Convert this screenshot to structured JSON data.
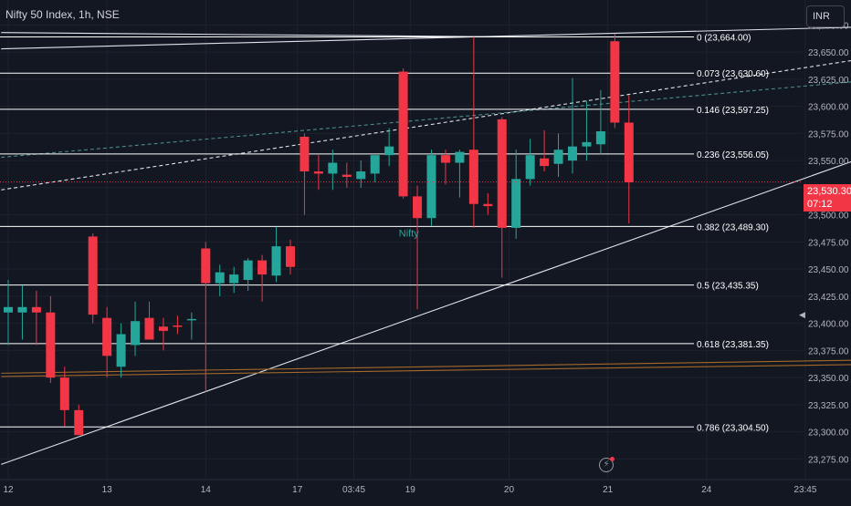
{
  "header": {
    "title": "Nifty 50 Index, 1h, NSE",
    "currency_button": "INR"
  },
  "price_tag": {
    "price": "23,530.30",
    "countdown": "07:12",
    "value": 23530.3
  },
  "colors": {
    "background": "#131722",
    "up": "#26a69a",
    "down": "#f23645",
    "grid": "#1e222d",
    "axis_text": "#b2b5be",
    "fib_line": "#ffffff",
    "trend_white": "#e0e3eb",
    "trend_teal": "#4a8c89",
    "trend_orange": "#a4682a"
  },
  "icons": {
    "flash": "lightning-icon",
    "nav": "chevron-left-icon"
  },
  "chart_data": {
    "type": "candlestick",
    "ylim": [
      23256,
      23698
    ],
    "y_ticks": [
      "23,675.00",
      "23,650.00",
      "23,625.00",
      "23,600.00",
      "23,575.00",
      "23,550.00",
      "23,525.00",
      "23,500.00",
      "23,475.00",
      "23,450.00",
      "23,425.00",
      "23,400.00",
      "23,375.00",
      "23,350.00",
      "23,325.00",
      "23,300.00",
      "23,275.00"
    ],
    "y_tick_values": [
      23675,
      23650,
      23625,
      23600,
      23575,
      23550,
      23525,
      23500,
      23475,
      23450,
      23425,
      23400,
      23375,
      23350,
      23325,
      23300,
      23275
    ],
    "x_ticks": [
      {
        "label": "12",
        "bar": 0
      },
      {
        "label": "13",
        "bar": 7
      },
      {
        "label": "14",
        "bar": 14
      },
      {
        "label": "17",
        "bar": 20.5
      },
      {
        "label": "03:45",
        "bar": 24.5
      },
      {
        "label": "19",
        "bar": 28.5
      },
      {
        "label": "20",
        "bar": 35.5
      },
      {
        "label": "21",
        "bar": 42.5
      },
      {
        "label": "24",
        "bar": 49.5
      },
      {
        "label": "23:45",
        "bar": 56.5
      }
    ],
    "series_label": "Nifty",
    "candles": [
      {
        "o": 23410,
        "h": 23440,
        "l": 23380,
        "c": 23415
      },
      {
        "o": 23410,
        "h": 23435,
        "l": 23385,
        "c": 23415
      },
      {
        "o": 23415,
        "h": 23430,
        "l": 23380,
        "c": 23410
      },
      {
        "o": 23410,
        "h": 23425,
        "l": 23345,
        "c": 23350
      },
      {
        "o": 23350,
        "h": 23360,
        "l": 23305,
        "c": 23320
      },
      {
        "o": 23320,
        "h": 23325,
        "l": 23298,
        "c": 23297
      },
      {
        "o": 23480,
        "h": 23483,
        "l": 23400,
        "c": 23408
      },
      {
        "o": 23405,
        "h": 23415,
        "l": 23350,
        "c": 23370
      },
      {
        "o": 23360,
        "h": 23400,
        "l": 23350,
        "c": 23390
      },
      {
        "o": 23380,
        "h": 23420,
        "l": 23370,
        "c": 23402
      },
      {
        "o": 23405,
        "h": 23420,
        "l": 23385,
        "c": 23385
      },
      {
        "o": 23397,
        "h": 23405,
        "l": 23375,
        "c": 23393
      },
      {
        "o": 23398,
        "h": 23407,
        "l": 23390,
        "c": 23397
      },
      {
        "o": 23404,
        "h": 23410,
        "l": 23385,
        "c": 23404
      },
      {
        "o": 23469,
        "h": 23475,
        "l": 23337,
        "c": 23437
      },
      {
        "o": 23437,
        "h": 23454,
        "l": 23425,
        "c": 23447
      },
      {
        "o": 23437,
        "h": 23452,
        "l": 23428,
        "c": 23445
      },
      {
        "o": 23440,
        "h": 23460,
        "l": 23430,
        "c": 23458
      },
      {
        "o": 23458,
        "h": 23463,
        "l": 23420,
        "c": 23445
      },
      {
        "o": 23444,
        "h": 23489,
        "l": 23438,
        "c": 23471
      },
      {
        "o": 23471,
        "h": 23477,
        "l": 23445,
        "c": 23452
      },
      {
        "o": 23572,
        "h": 23575,
        "l": 23500,
        "c": 23540
      },
      {
        "o": 23540,
        "h": 23555,
        "l": 23523,
        "c": 23538
      },
      {
        "o": 23538,
        "h": 23560,
        "l": 23523,
        "c": 23548
      },
      {
        "o": 23537,
        "h": 23548,
        "l": 23525,
        "c": 23535
      },
      {
        "o": 23533,
        "h": 23550,
        "l": 23525,
        "c": 23540
      },
      {
        "o": 23538,
        "h": 23555,
        "l": 23530,
        "c": 23555
      },
      {
        "o": 23555,
        "h": 23580,
        "l": 23545,
        "c": 23563
      },
      {
        "o": 23632,
        "h": 23635,
        "l": 23515,
        "c": 23517
      },
      {
        "o": 23517,
        "h": 23527,
        "l": 23413,
        "c": 23497
      },
      {
        "o": 23497,
        "h": 23560,
        "l": 23490,
        "c": 23555
      },
      {
        "o": 23555,
        "h": 23560,
        "l": 23528,
        "c": 23548
      },
      {
        "o": 23548,
        "h": 23560,
        "l": 23516,
        "c": 23558
      },
      {
        "o": 23560,
        "h": 23664,
        "l": 23488,
        "c": 23510
      },
      {
        "o": 23510,
        "h": 23520,
        "l": 23500,
        "c": 23508
      },
      {
        "o": 23588,
        "h": 23590,
        "l": 23442,
        "c": 23488
      },
      {
        "o": 23488,
        "h": 23560,
        "l": 23478,
        "c": 23533
      },
      {
        "o": 23533,
        "h": 23570,
        "l": 23527,
        "c": 23555
      },
      {
        "o": 23552,
        "h": 23578,
        "l": 23540,
        "c": 23545
      },
      {
        "o": 23547,
        "h": 23575,
        "l": 23535,
        "c": 23560
      },
      {
        "o": 23550,
        "h": 23626,
        "l": 23538,
        "c": 23563
      },
      {
        "o": 23563,
        "h": 23605,
        "l": 23550,
        "c": 23567
      },
      {
        "o": 23565,
        "h": 23615,
        "l": 23556,
        "c": 23577
      },
      {
        "o": 23660,
        "h": 23667,
        "l": 23580,
        "c": 23585
      },
      {
        "o": 23585,
        "h": 23610,
        "l": 23492,
        "c": 23530
      }
    ],
    "fib_levels": [
      {
        "label": "0 (23,664.00)",
        "value": 23664
      },
      {
        "label": "0.073 (23,630.60)",
        "value": 23630.6
      },
      {
        "label": "0.146 (23,597.25)",
        "value": 23597.25
      },
      {
        "label": "0.236 (23,556.05)",
        "value": 23556.05
      },
      {
        "label": "0.382 (23,489.30)",
        "value": 23489.3
      },
      {
        "label": "0.5 (23,435.35)",
        "value": 23435.35
      },
      {
        "label": "0.618 (23,381.35)",
        "value": 23381.35
      },
      {
        "label": "0.786 (23,304.50)",
        "value": 23304.5
      }
    ],
    "trendlines": [
      {
        "style": "solid",
        "color": "trend_white",
        "from": {
          "bar": -0.5,
          "value": 23653
        },
        "to": {
          "bar": 63,
          "value": 23673
        }
      },
      {
        "style": "solid",
        "color": "trend_white",
        "from": {
          "bar": -0.5,
          "value": 23668
        },
        "to": {
          "bar": 35.5,
          "value": 23664
        }
      },
      {
        "style": "solid",
        "color": "trend_white",
        "from": {
          "bar": -0.5,
          "value": 23270
        },
        "to": {
          "bar": 63,
          "value": 23551
        }
      },
      {
        "style": "dashed",
        "color": "trend_white",
        "from": {
          "bar": -0.5,
          "value": 23523
        },
        "to": {
          "bar": 63,
          "value": 23643
        }
      },
      {
        "style": "dashed",
        "color": "trend_teal",
        "from": {
          "bar": -0.5,
          "value": 23553
        },
        "to": {
          "bar": 63,
          "value": 23623
        }
      },
      {
        "style": "solid",
        "color": "trend_orange",
        "from": {
          "bar": -0.5,
          "value": 23354
        },
        "to": {
          "bar": 63,
          "value": 23366
        }
      },
      {
        "style": "solid",
        "color": "trend_orange",
        "from": {
          "bar": -0.5,
          "value": 23351
        },
        "to": {
          "bar": 63,
          "value": 23362
        }
      }
    ]
  }
}
